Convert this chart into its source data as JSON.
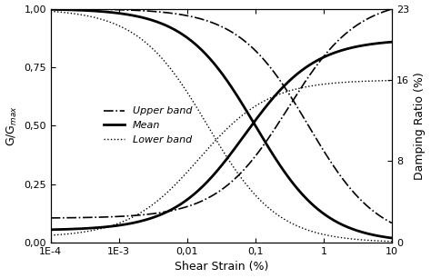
{
  "xlabel": "Shear Strain (%)",
  "ylabel_left": "G/G$_{max}$",
  "ylabel_right": "Damping Ratio (%)",
  "xtick_values": [
    0.0001,
    0.001,
    0.01,
    0.1,
    1,
    10
  ],
  "xtick_labels": [
    "1E-4",
    "1E-3",
    "0,01",
    "0,1",
    "1",
    "10"
  ],
  "ytick_left": [
    0.0,
    0.25,
    0.5,
    0.75,
    1.0
  ],
  "ytick_left_labels": [
    "0,00",
    "0,25",
    "0,50",
    "0,75",
    "1,00"
  ],
  "ytick_right": [
    0,
    8,
    16,
    23
  ],
  "ytick_right_labels": [
    "0",
    "8",
    "16",
    "23"
  ],
  "legend_labels": [
    "Upper band",
    "Mean",
    "Lower band"
  ],
  "modulus_curves": [
    {
      "gamma_r": 0.6,
      "curvature": 0.85,
      "style": "-.",
      "color": "black",
      "lw": 1.2
    },
    {
      "gamma_r": 0.1,
      "curvature": 0.85,
      "style": "-",
      "color": "black",
      "lw": 2.0
    },
    {
      "gamma_r": 0.02,
      "curvature": 0.85,
      "style": ":",
      "color": "black",
      "lw": 1.0
    }
  ],
  "damping_curves": [
    {
      "d_min": 0.024,
      "d_max": 0.24,
      "gamma_r": 0.3,
      "curvature": 0.85,
      "style": "-.",
      "color": "black",
      "lw": 1.2
    },
    {
      "d_min": 0.012,
      "d_max": 0.2,
      "gamma_r": 0.07,
      "curvature": 0.85,
      "style": "-",
      "color": "black",
      "lw": 2.0
    },
    {
      "d_min": 0.005,
      "d_max": 0.16,
      "gamma_r": 0.015,
      "curvature": 0.85,
      "style": ":",
      "color": "black",
      "lw": 1.0
    }
  ]
}
